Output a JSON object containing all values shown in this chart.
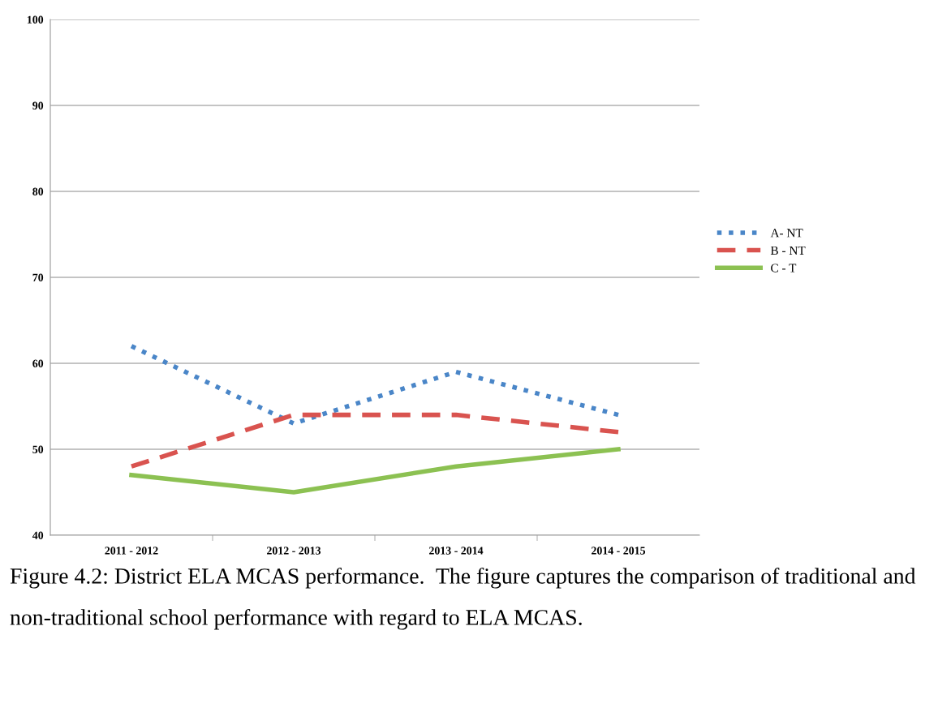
{
  "chart_data": {
    "type": "line",
    "categories": [
      "2011 - 2012",
      "2012 - 2013",
      "2013 - 2014",
      "2014 - 2015"
    ],
    "series": [
      {
        "name": "A- NT",
        "color": "#4a86c8",
        "values": [
          62,
          53,
          59,
          54
        ],
        "line_style": "dotted"
      },
      {
        "name": "B - NT",
        "color": "#d9534f",
        "values": [
          48,
          54,
          54,
          52
        ],
        "line_style": "dashed"
      },
      {
        "name": "C - T",
        "color": "#8cc152",
        "values": [
          47,
          45,
          48,
          50
        ],
        "line_style": "solid"
      }
    ],
    "ylim": [
      40,
      100
    ],
    "yticks": [
      40,
      50,
      60,
      70,
      80,
      90,
      100
    ],
    "grid": "y",
    "legend": "right",
    "marker": "none",
    "annotations": [
      "Figure 4.2: District ELA MCAS performance.  The figure captures the comparison of traditional and non-traditional school performance with regard to ELA MCAS."
    ]
  }
}
